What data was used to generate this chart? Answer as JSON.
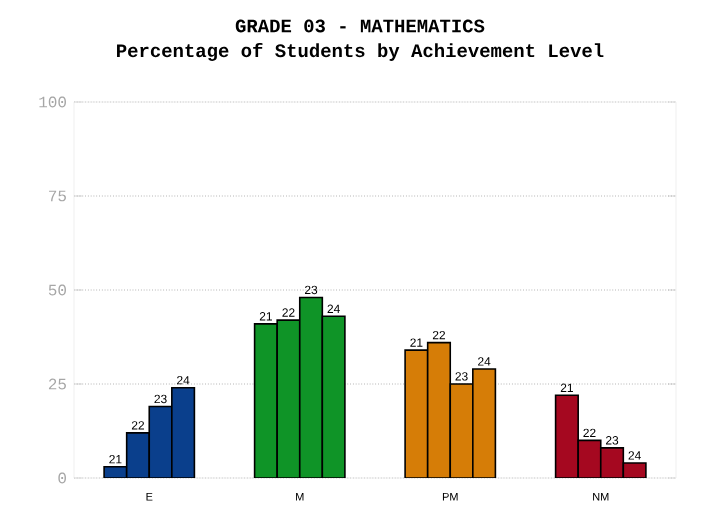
{
  "chart_data": {
    "type": "bar",
    "title": "GRADE 03 - MATHEMATICS",
    "subtitle": "Percentage of Students by Achievement Level",
    "categories": [
      "E",
      "M",
      "PM",
      "NM"
    ],
    "series": [
      {
        "name": "21",
        "colors": [
          "#0a3f8c",
          "#0f9427",
          "#d67d07",
          "#a50820"
        ],
        "values": [
          3,
          41,
          34,
          22
        ]
      },
      {
        "name": "22",
        "colors": [
          "#0a3f8c",
          "#0f9427",
          "#d67d07",
          "#a50820"
        ],
        "values": [
          12,
          42,
          36,
          10
        ]
      },
      {
        "name": "23",
        "colors": [
          "#0a3f8c",
          "#0f9427",
          "#d67d07",
          "#a50820"
        ],
        "values": [
          19,
          48,
          25,
          8
        ]
      },
      {
        "name": "24",
        "colors": [
          "#0a3f8c",
          "#0f9427",
          "#d67d07",
          "#a50820"
        ],
        "values": [
          24,
          43,
          29,
          4
        ]
      }
    ],
    "ylim": [
      0,
      100
    ],
    "yticks": [
      0,
      25,
      50,
      75,
      100
    ],
    "grid": "y"
  }
}
